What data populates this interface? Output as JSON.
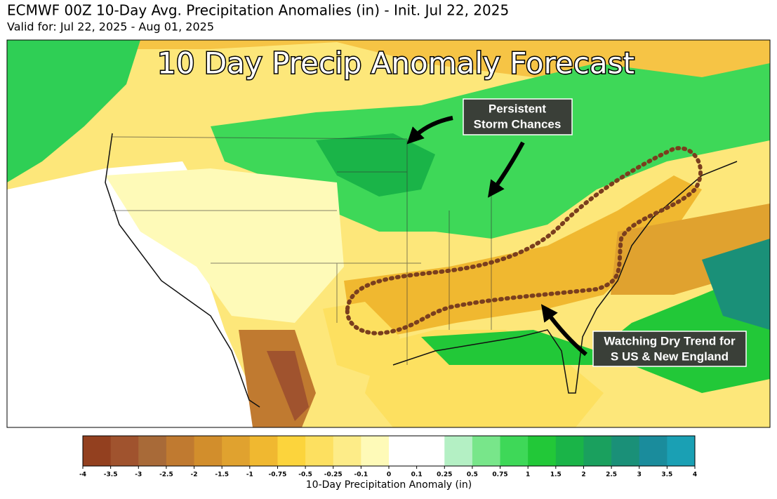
{
  "header": {
    "title": "ECMWF 00Z 10-Day Avg. Precipitation Anomalies (in) - Init. Jul 22, 2025",
    "subtitle": "Valid for: Jul 22, 2025 - Aug 01, 2025"
  },
  "map": {
    "overlay_title": "10 Day Precip Anomaly Forecast",
    "annotations": [
      {
        "lines": [
          "Persistent",
          "Storm Chances"
        ]
      },
      {
        "lines": [
          "Watching Dry Trend for",
          "S US & New England"
        ]
      }
    ]
  },
  "colorbar": {
    "label": "10-Day Precipitation Anomaly (in)",
    "ticks": [
      -4,
      -3.5,
      -3,
      -2.5,
      -2,
      -1.5,
      -1,
      -0.75,
      -0.5,
      -0.25,
      -0.1,
      0,
      0.1,
      0.25,
      0.5,
      0.75,
      1,
      1.5,
      2,
      2.5,
      3,
      3.5,
      4
    ],
    "colors": [
      "#93401f",
      "#a0532e",
      "#a86a38",
      "#c07a30",
      "#d28e2c",
      "#e0a22f",
      "#f0b830",
      "#fcd43c",
      "#fde060",
      "#fdec88",
      "#fefab8",
      "#ffffff",
      "#ffffff",
      "#b4f0c4",
      "#78e68a",
      "#3ed858",
      "#22c838",
      "#1ab448",
      "#1aa05e",
      "#1a9078",
      "#1a8c9c",
      "#1aa0b4"
    ]
  }
}
